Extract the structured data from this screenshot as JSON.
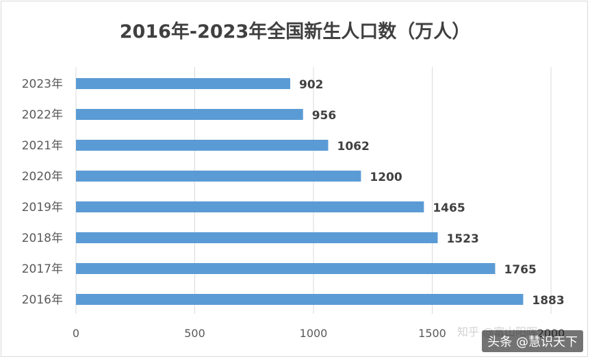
{
  "title": "2016年-2023年全国新生人口数（万人）",
  "watermark": "头条 @慧识天下",
  "watermark_faint": "知乎 @富山阳晖",
  "colors": {
    "bar": "#5b9bd5",
    "grid": "#d9d9d9",
    "axis_text": "#595959",
    "label_text": "#404040"
  },
  "chart_data": {
    "type": "bar",
    "orientation": "horizontal",
    "categories": [
      "2023年",
      "2022年",
      "2021年",
      "2020年",
      "2019年",
      "2018年",
      "2017年",
      "2016年"
    ],
    "values": [
      902,
      956,
      1062,
      1200,
      1465,
      1523,
      1765,
      1883
    ],
    "xlim": [
      0,
      2000
    ],
    "xticks": [
      0,
      500,
      1000,
      1500,
      2000
    ],
    "xtick_labels": [
      "0",
      "500",
      "1000",
      "1500",
      "2000"
    ],
    "grid": true,
    "data_labels": true
  }
}
